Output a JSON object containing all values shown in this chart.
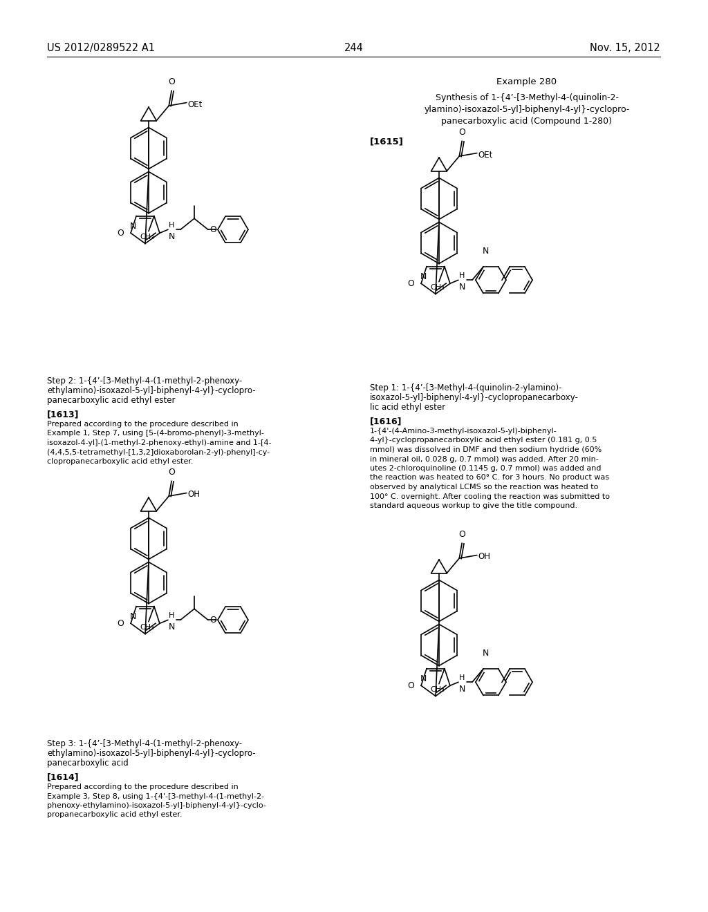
{
  "background_color": "#ffffff",
  "page_number": "244",
  "header_left": "US 2012/0289522 A1",
  "header_right": "Nov. 15, 2012",
  "example_title": "Example 280",
  "example_subtitle_line1": "Synthesis of 1-{4’-[3-Methyl-4-(quinolin-2-",
  "example_subtitle_line2": "ylamino)-isoxazol-5-yl]-biphenyl-4-yl}-cyclopro-",
  "example_subtitle_line3": "panecarboxylic acid (Compound 1-280)",
  "ref_1615": "[1615]",
  "step1_title": "Step 1: 1-{4’-[3-Methyl-4-(quinolin-2-ylamino)-",
  "step1_title2": "isoxazol-5-yl]-biphenyl-4-yl}-cyclopropanecarboxy-",
  "step1_title3": "lic acid ethyl ester",
  "ref_1616": "[1616]",
  "text_1616": "1-[4’-(4-Amino-3-methyl-isoxazol-5-yl)-biphenyl-4-yl]-cyclopropanecarboxylic acid ethyl ester (0.181 g, 0.5 mmol) was dissolved in DMF and then sodium hydride (60% in mineral oil, 0.028 g, 0.7 mmol) was added. After 20 minutes 2-chloroquinoline (0.1145 g, 0.7 mmol) was added and the reaction was heated to 60° C. for 3 hours. No product was observed by analytical LCMS so the reaction was heated to 100° C. overnight. After cooling the reaction was submitted to standard aqueous workup to give the title compound.",
  "step2_title": "Step 2: 1-{4’-[3-Methyl-4-(1-methyl-2-phenoxy-",
  "step2_title2": "ethylamino)-isoxazol-5-yl]-biphenyl-4-yl}-cyclopro-",
  "step2_title3": "panecarboxylic acid ethyl ester",
  "ref_1613": "[1613]",
  "text_1613": "Prepared according to the procedure described in Example 1, Step 7, using [5-(4-bromo-phenyl)-3-methyl-isoxazol-4-yl]-(1-methyl-2-phenoxy-ethyl)-amine and 1-[4-(4,4,5,5-tetramethyl-[1,3,2]dioxaborolan-2-yl)-phenyl]-cyclopropanecarboxylic acid ethyl ester.",
  "step3_title": "Step 3: 1-{4’-[3-Methyl-4-(1-methyl-2-phenoxy-",
  "step3_title2": "ethylamino)-isoxazol-5-yl]-biphenyl-4-yl}-cyclopro-",
  "step3_title3": "panecarboxylic acid",
  "ref_1614": "[1614]",
  "text_1614": "Prepared according to the procedure described in Example 3, Step 8, using 1-{4’-[3-methyl-4-(1-methyl-2-phenoxy-ethylamino)-isoxazol-5-yl]-biphenyl-4-yl}-cyclopropanecarboxylic acid ethyl ester."
}
